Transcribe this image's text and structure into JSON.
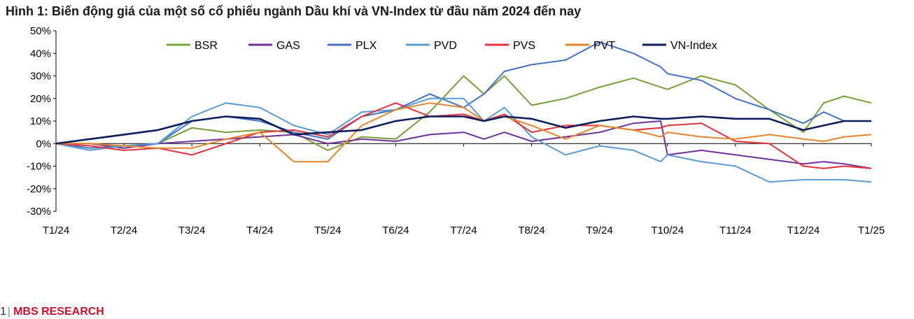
{
  "title": "Hình 1: Biến động giá của một số cổ phiếu ngành Dầu khí và VN-Index từ đầu năm 2024 đến nay",
  "footer": {
    "page": "1",
    "separator": "|",
    "brand": "MBS RESEARCH"
  },
  "chart_data": {
    "type": "line",
    "title": "Hình 1: Biến động giá của một số cổ phiếu ngành Dầu khí và VN-Index từ đầu năm 2024 đến nay",
    "xlabel": "",
    "ylabel": "",
    "ylim": [
      -30,
      50
    ],
    "yticks": [
      -30,
      -20,
      -10,
      0,
      10,
      20,
      30,
      40,
      50
    ],
    "ytick_labels": [
      "-30%",
      "-20%",
      "-10%",
      "0%",
      "10%",
      "20%",
      "30%",
      "40%",
      "50%"
    ],
    "x_labels": [
      "T1/24",
      "T2/24",
      "T3/24",
      "T4/24",
      "T5/24",
      "T6/24",
      "T7/24",
      "T8/24",
      "T9/24",
      "T10/24",
      "T11/24",
      "T12/24",
      "T1/25"
    ],
    "x_range": [
      0,
      12
    ],
    "grid": false,
    "legend_position": "top",
    "series": [
      {
        "name": "BSR",
        "color": "#76a13a",
        "x": [
          0,
          0.5,
          1,
          1.5,
          2,
          2.5,
          3,
          3.5,
          4,
          4.5,
          5,
          5.5,
          6,
          6.3,
          6.6,
          7,
          7.5,
          8,
          8.5,
          9,
          9.5,
          10,
          10.5,
          11,
          11.3,
          11.6,
          12
        ],
        "values": [
          0,
          0,
          -2,
          0,
          7,
          5,
          6,
          5,
          -3,
          3,
          2,
          14,
          30,
          22,
          30,
          17,
          20,
          25,
          29,
          24,
          30,
          26,
          15,
          5,
          18,
          21,
          18
        ]
      },
      {
        "name": "GAS",
        "color": "#7030a0",
        "x": [
          0,
          0.5,
          1,
          1.5,
          2,
          2.5,
          3,
          3.5,
          4,
          4.5,
          5,
          5.5,
          6,
          6.3,
          6.6,
          7,
          7.5,
          8,
          8.5,
          8.9,
          9,
          9.5,
          10,
          10.5,
          11,
          11.3,
          11.6,
          12
        ],
        "values": [
          0,
          0,
          -2,
          0,
          1,
          2,
          3,
          4,
          0,
          2,
          1,
          4,
          5,
          2,
          5,
          1,
          3,
          5,
          9,
          10,
          -5,
          -3,
          -5,
          -7,
          -9,
          -8,
          -9,
          -11
        ]
      },
      {
        "name": "PLX",
        "color": "#4472c4",
        "x": [
          0,
          0.5,
          1,
          1.5,
          2,
          2.5,
          3,
          3.5,
          4,
          4.5,
          5,
          5.5,
          6,
          6.3,
          6.6,
          7,
          7.5,
          8,
          8.5,
          8.9,
          9,
          9.5,
          10,
          10.5,
          11,
          11.3,
          11.6,
          12
        ],
        "values": [
          0,
          -2,
          -1,
          0,
          10,
          12,
          10,
          5,
          2,
          12,
          15,
          22,
          16,
          22,
          32,
          35,
          37,
          45,
          40,
          34,
          31,
          28,
          20,
          15,
          9,
          14,
          10,
          10
        ]
      },
      {
        "name": "PVD",
        "color": "#5b9bd5",
        "x": [
          0,
          0.5,
          1,
          1.5,
          2,
          2.5,
          3,
          3.5,
          4,
          4.5,
          5,
          5.5,
          6,
          6.3,
          6.6,
          7,
          7.5,
          8,
          8.5,
          8.9,
          9,
          9.5,
          10,
          10.5,
          11,
          11.3,
          11.6,
          12
        ],
        "values": [
          0,
          -3,
          -1,
          0,
          12,
          18,
          16,
          8,
          4,
          14,
          15,
          20,
          20,
          10,
          16,
          3,
          -5,
          -1,
          -3,
          -8,
          -5,
          -8,
          -10,
          -17,
          -16,
          -16,
          -16,
          -17
        ]
      },
      {
        "name": "PVS",
        "color": "#e8303a",
        "x": [
          0,
          0.5,
          1,
          1.5,
          2,
          2.5,
          3,
          3.5,
          4,
          4.5,
          5,
          5.5,
          6,
          6.3,
          6.6,
          7,
          7.5,
          8,
          8.5,
          8.9,
          9,
          9.5,
          10,
          10.5,
          11,
          11.3,
          11.6,
          12
        ],
        "values": [
          0,
          -1,
          -3,
          -2,
          -5,
          0,
          5,
          6,
          3,
          12,
          18,
          12,
          13,
          10,
          13,
          5,
          8,
          8,
          6,
          7,
          8,
          9,
          1,
          0,
          -10,
          -11,
          -10,
          -11
        ]
      },
      {
        "name": "PVT",
        "color": "#e6862e",
        "x": [
          0,
          0.5,
          1,
          1.5,
          2,
          2.5,
          3,
          3.5,
          4,
          4.5,
          5,
          5.5,
          6,
          6.3,
          6.6,
          7,
          7.5,
          8,
          8.5,
          8.9,
          9,
          9.5,
          10,
          10.5,
          11,
          11.3,
          11.6,
          12
        ],
        "values": [
          0,
          0,
          -1,
          -2,
          -2,
          2,
          5,
          -8,
          -8,
          8,
          15,
          18,
          16,
          10,
          12,
          8,
          2,
          8,
          6,
          3,
          5,
          3,
          2,
          4,
          2,
          1,
          3,
          4
        ]
      },
      {
        "name": "VN-Index",
        "color": "#0d1e5e",
        "x": [
          0,
          0.5,
          1,
          1.5,
          2,
          2.5,
          3,
          3.5,
          4,
          4.5,
          5,
          5.5,
          6,
          6.3,
          6.6,
          7,
          7.5,
          8,
          8.5,
          8.9,
          9,
          9.5,
          10,
          10.5,
          11,
          11.3,
          11.6,
          12
        ],
        "values": [
          0,
          2,
          4,
          6,
          10,
          12,
          11,
          4,
          5,
          6,
          10,
          12,
          12,
          10,
          12,
          11,
          7,
          10,
          12,
          11,
          11,
          12,
          11,
          11,
          6,
          8,
          10,
          10
        ]
      }
    ]
  }
}
